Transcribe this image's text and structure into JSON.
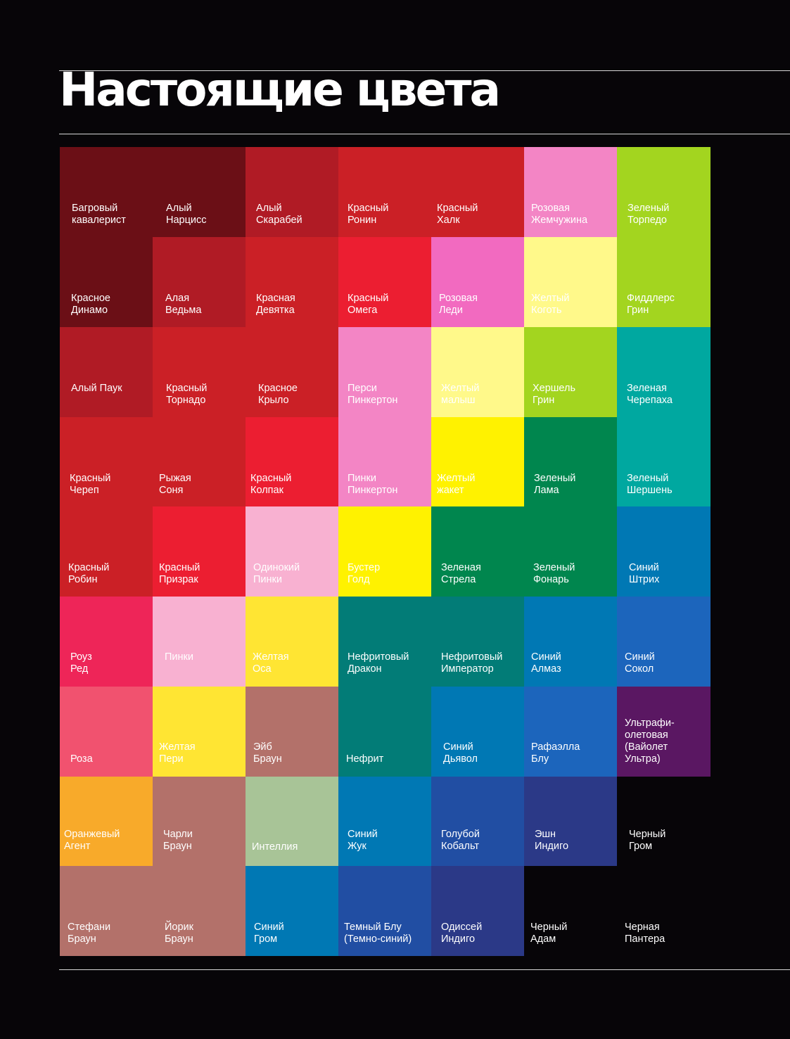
{
  "title": "Настоящие цвета",
  "swatches": [
    {
      "label": "Багровый\nкавалерист",
      "color": "#6b0f16"
    },
    {
      "label": "Алый\nНарцисс",
      "color": "#6b0f16"
    },
    {
      "label": "Алый\nСкарабей",
      "color": "#b01b25"
    },
    {
      "label": "Красный\nРонин",
      "color": "#cb2026"
    },
    {
      "label": "Красный\nХалк",
      "color": "#cb2026"
    },
    {
      "label": "Розовая\nЖемчужина",
      "color": "#f385c5"
    },
    {
      "label": "Зеленый\nТорпедо",
      "color": "#a3d51f"
    },
    {
      "label": "Красное\nДинамо",
      "color": "#6b0f16"
    },
    {
      "label": "Алая\nВедьма",
      "color": "#b01b25"
    },
    {
      "label": "Красная\nДевятка",
      "color": "#cb2026"
    },
    {
      "label": "Красный\nОмега",
      "color": "#ec1e31"
    },
    {
      "label": "Розовая\nЛеди",
      "color": "#f26ac0"
    },
    {
      "label": "Желтый\nКоготь",
      "color": "#fff98a"
    },
    {
      "label": "Фиддлерс\nГрин",
      "color": "#a3d51f"
    },
    {
      "label": "Алый Паук",
      "color": "#b01b25"
    },
    {
      "label": "Красный\nТорнадо",
      "color": "#cb2026"
    },
    {
      "label": "Красное\nКрыло",
      "color": "#cb2026"
    },
    {
      "label": "Перси\nПинкертон",
      "color": "#f385c5"
    },
    {
      "label": "Желтый\nмалыш",
      "color": "#fff98a"
    },
    {
      "label": "Хершель\nГрин",
      "color": "#a3d51f"
    },
    {
      "label": "Зеленая\nЧерепаха",
      "color": "#00a8a0"
    },
    {
      "label": "Красный\nЧереп",
      "color": "#cb2026"
    },
    {
      "label": "Рыжая\nСоня",
      "color": "#cb2026"
    },
    {
      "label": "Красный\nКолпак",
      "color": "#ec1e31"
    },
    {
      "label": "Пинки\nПинкертон",
      "color": "#f385c5"
    },
    {
      "label": "Желтый\nжакет",
      "color": "#fff200"
    },
    {
      "label": "Зеленый\nЛама",
      "color": "#00864e"
    },
    {
      "label": "Зеленый\nШершень",
      "color": "#00a8a0"
    },
    {
      "label": "Красный\nРобин",
      "color": "#cb2026"
    },
    {
      "label": "Красный\nПризрак",
      "color": "#ec1e31"
    },
    {
      "label": "Одинокий\nПинки",
      "color": "#f8b1d1"
    },
    {
      "label": "Бустер\nГолд",
      "color": "#fff200"
    },
    {
      "label": "Зеленая\nСтрела",
      "color": "#00864e"
    },
    {
      "label": "Зеленый\nФонарь",
      "color": "#00864e"
    },
    {
      "label": "Синий\nШтрих",
      "color": "#0078b4"
    },
    {
      "label": "Роуз\nРед",
      "color": "#ee2558"
    },
    {
      "label": "Пинки",
      "color": "#f8b1d1"
    },
    {
      "label": "Желтая\nОса",
      "color": "#ffe533"
    },
    {
      "label": "Нефритовый\nДракон",
      "color": "#027c77"
    },
    {
      "label": "Нефритовый\nИмператор",
      "color": "#027c77"
    },
    {
      "label": "Синий\nАлмаз",
      "color": "#0078b4"
    },
    {
      "label": "Синий\nСокол",
      "color": "#1c65bc"
    },
    {
      "label": "Роза",
      "color": "#f1526f"
    },
    {
      "label": "Желтая\nПери",
      "color": "#ffe533"
    },
    {
      "label": "Эйб\nБраун",
      "color": "#b3716a"
    },
    {
      "label": "Нефрит",
      "color": "#027c77"
    },
    {
      "label": "Синий\nДьявол",
      "color": "#0078b4"
    },
    {
      "label": "Рафаэлла\nБлу",
      "color": "#1c65bc"
    },
    {
      "label": "Ультрафи-\nолетовая\n(Вайолет\nУльтра)",
      "color": "#5a1762"
    },
    {
      "label": "Оранжевый\nАгент",
      "color": "#f8aa2a"
    },
    {
      "label": "Чарли\nБраун",
      "color": "#b3716a"
    },
    {
      "label": "Интеллия",
      "color": "#a8c497"
    },
    {
      "label": "Синий\nЖук",
      "color": "#0078b4"
    },
    {
      "label": "Голубой\nКобальт",
      "color": "#214ea3"
    },
    {
      "label": "Эшн\nИндиго",
      "color": "#2b3987"
    },
    {
      "label": "Черный\nГром",
      "color": "#070508"
    },
    {
      "label": "Стефани\nБраун",
      "color": "#b3716a"
    },
    {
      "label": "Йорик\nБраун",
      "color": "#b3716a"
    },
    {
      "label": "Синий\nГром",
      "color": "#0078b4"
    },
    {
      "label": "Темный Блу\n(Темно-синий)",
      "color": "#214ea3"
    },
    {
      "label": "Одиссей\nИндиго",
      "color": "#2b3987"
    },
    {
      "label": "Черный\nАдам",
      "color": "#070508"
    },
    {
      "label": "Черная\nПантера",
      "color": "#070508"
    }
  ]
}
